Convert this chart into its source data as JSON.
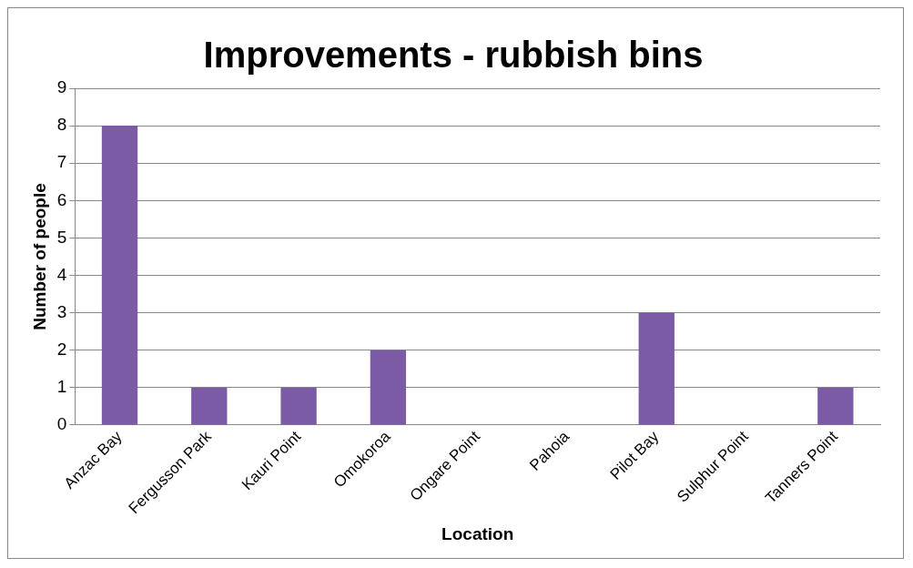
{
  "chart_data": {
    "type": "bar",
    "title": "Improvements - rubbish bins",
    "xlabel": "Location",
    "ylabel": "Number of people",
    "categories": [
      "Anzac Bay",
      "Fergusson Park",
      "Kauri Point",
      "Omokoroa",
      "Ongare Point",
      "Pahoia",
      "Pilot Bay",
      "Sulphur Point",
      "Tanners Point"
    ],
    "values": [
      8,
      1,
      1,
      2,
      0,
      0,
      3,
      0,
      1
    ],
    "color": "#7b5aa6",
    "ylim": [
      0,
      9
    ],
    "yticks": [
      0,
      1,
      2,
      3,
      4,
      5,
      6,
      7,
      8,
      9
    ],
    "grid": "y",
    "legend": false
  }
}
